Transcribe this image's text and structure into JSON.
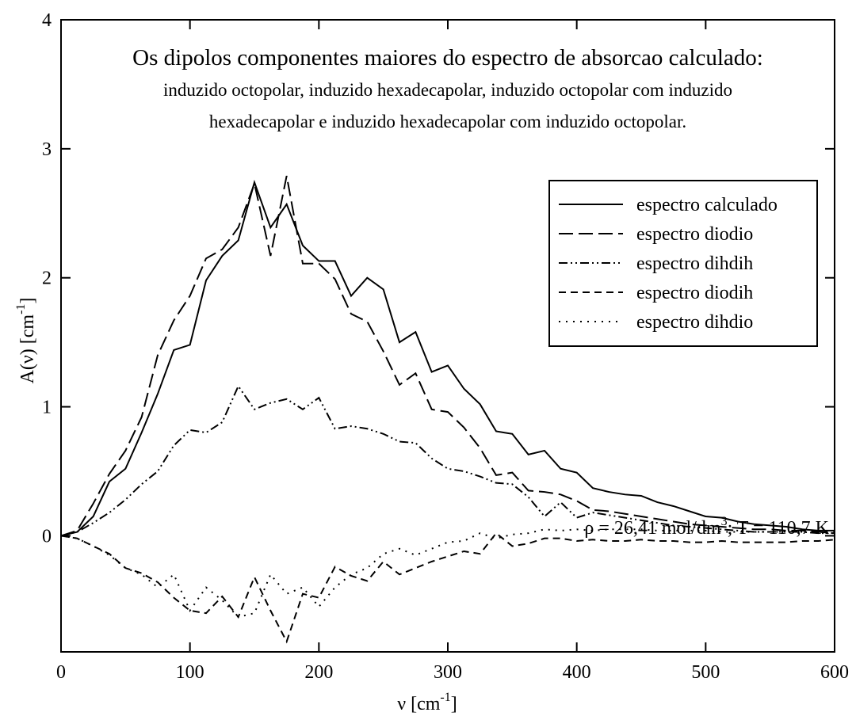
{
  "chart_data": {
    "type": "line",
    "title": "Os dipolos componentes maiores do espectro de absorcao calculado:",
    "subtitle": [
      "induzido octopolar, induzido hexadecapolar, induzido octopolar com induzido",
      "hexadecapolar e induzido hexadecapolar com induzido octopolar."
    ],
    "x_label": {
      "text": "ν   [cm",
      "sup": "-1",
      "end": "]"
    },
    "y_label": {
      "text": "A(ν)   [cm",
      "sup": "-1",
      "end": "]"
    },
    "annotation": {
      "text": "ρ = 26,41 mol/dm",
      "sup": "3",
      "end": "; T = 110,7 K"
    },
    "xlim": [
      0,
      600
    ],
    "xticks": [
      0,
      100,
      200,
      300,
      400,
      500,
      600
    ],
    "ylim": [
      -0.9,
      4
    ],
    "yticks": [
      0,
      1,
      2,
      3,
      4
    ],
    "legend": "upper right",
    "x": [
      0,
      12.5,
      25,
      37.5,
      50,
      62.5,
      75,
      87.5,
      100,
      112.5,
      125,
      137.5,
      150,
      162.5,
      175,
      187.5,
      200,
      212.5,
      225,
      237.5,
      250,
      262.5,
      275,
      287.5,
      300,
      312.5,
      325,
      337.5,
      350,
      362.5,
      375,
      387.5,
      400,
      412.5,
      425,
      437.5,
      450,
      462.5,
      475,
      487.5,
      500,
      512.5,
      525,
      537.5,
      550,
      562.5,
      575,
      587.5,
      600
    ],
    "series": [
      {
        "name": "espectro calculado",
        "color": "#000000",
        "dash": "solid",
        "values": [
          0,
          0.03,
          0.15,
          0.42,
          0.52,
          0.8,
          1.1,
          1.44,
          1.48,
          1.98,
          2.17,
          2.29,
          2.74,
          2.39,
          2.57,
          2.25,
          2.13,
          2.13,
          1.86,
          2.0,
          1.91,
          1.5,
          1.58,
          1.27,
          1.32,
          1.14,
          1.02,
          0.81,
          0.79,
          0.63,
          0.66,
          0.52,
          0.49,
          0.37,
          0.34,
          0.32,
          0.31,
          0.26,
          0.23,
          0.19,
          0.15,
          0.14,
          0.11,
          0.09,
          0.08,
          0.07,
          0.05,
          0.04,
          0.04
        ]
      },
      {
        "name": "espectro diodio",
        "color": "#000000",
        "dash": "long-dash",
        "values": [
          0,
          0.04,
          0.25,
          0.48,
          0.66,
          0.92,
          1.4,
          1.67,
          1.86,
          2.15,
          2.22,
          2.39,
          2.73,
          2.17,
          2.79,
          2.11,
          2.11,
          1.99,
          1.72,
          1.66,
          1.43,
          1.17,
          1.26,
          0.98,
          0.96,
          0.84,
          0.68,
          0.47,
          0.49,
          0.35,
          0.34,
          0.32,
          0.27,
          0.2,
          0.19,
          0.17,
          0.15,
          0.13,
          0.11,
          0.09,
          0.08,
          0.07,
          0.06,
          0.05,
          0.05,
          0.04,
          0.04,
          0.03,
          0.02
        ]
      },
      {
        "name": "espectro dihdih",
        "color": "#000000",
        "dash": "dash-dot-dot",
        "values": [
          0,
          0.03,
          0.1,
          0.18,
          0.28,
          0.4,
          0.5,
          0.7,
          0.82,
          0.8,
          0.88,
          1.16,
          0.98,
          1.03,
          1.06,
          0.98,
          1.07,
          0.83,
          0.85,
          0.83,
          0.79,
          0.73,
          0.72,
          0.6,
          0.52,
          0.5,
          0.46,
          0.41,
          0.4,
          0.3,
          0.15,
          0.26,
          0.14,
          0.18,
          0.16,
          0.14,
          0.12,
          0.1,
          0.08,
          0.07,
          0.06,
          0.05,
          0.04,
          0.03,
          0.03,
          0.03,
          0.03,
          0.02,
          0.02
        ]
      },
      {
        "name": "espectro diodih",
        "color": "#000000",
        "dash": "dash",
        "values": [
          0,
          -0.02,
          -0.08,
          -0.14,
          -0.25,
          -0.29,
          -0.36,
          -0.48,
          -0.58,
          -0.6,
          -0.47,
          -0.63,
          -0.32,
          -0.58,
          -0.82,
          -0.45,
          -0.48,
          -0.24,
          -0.31,
          -0.35,
          -0.2,
          -0.3,
          -0.25,
          -0.2,
          -0.16,
          -0.12,
          -0.14,
          0.02,
          -0.08,
          -0.06,
          -0.02,
          -0.02,
          -0.04,
          -0.03,
          -0.04,
          -0.04,
          -0.03,
          -0.04,
          -0.04,
          -0.05,
          -0.05,
          -0.04,
          -0.05,
          -0.05,
          -0.05,
          -0.05,
          -0.04,
          -0.04,
          -0.03
        ]
      },
      {
        "name": "espectro dihdio",
        "color": "#000000",
        "dash": "dot",
        "values": [
          0,
          -0.02,
          -0.08,
          -0.15,
          -0.25,
          -0.3,
          -0.4,
          -0.3,
          -0.58,
          -0.4,
          -0.5,
          -0.63,
          -0.6,
          -0.3,
          -0.45,
          -0.4,
          -0.55,
          -0.4,
          -0.3,
          -0.25,
          -0.14,
          -0.1,
          -0.15,
          -0.1,
          -0.05,
          -0.04,
          0.02,
          -0.02,
          0.01,
          0.02,
          0.05,
          0.04,
          0.05,
          0.04,
          0.05,
          0.05,
          0.05,
          0.04,
          0.04,
          0.04,
          0.04,
          0.03,
          0.03,
          0.03,
          0.03,
          0.03,
          0.03,
          0.03,
          0.03
        ]
      }
    ]
  }
}
